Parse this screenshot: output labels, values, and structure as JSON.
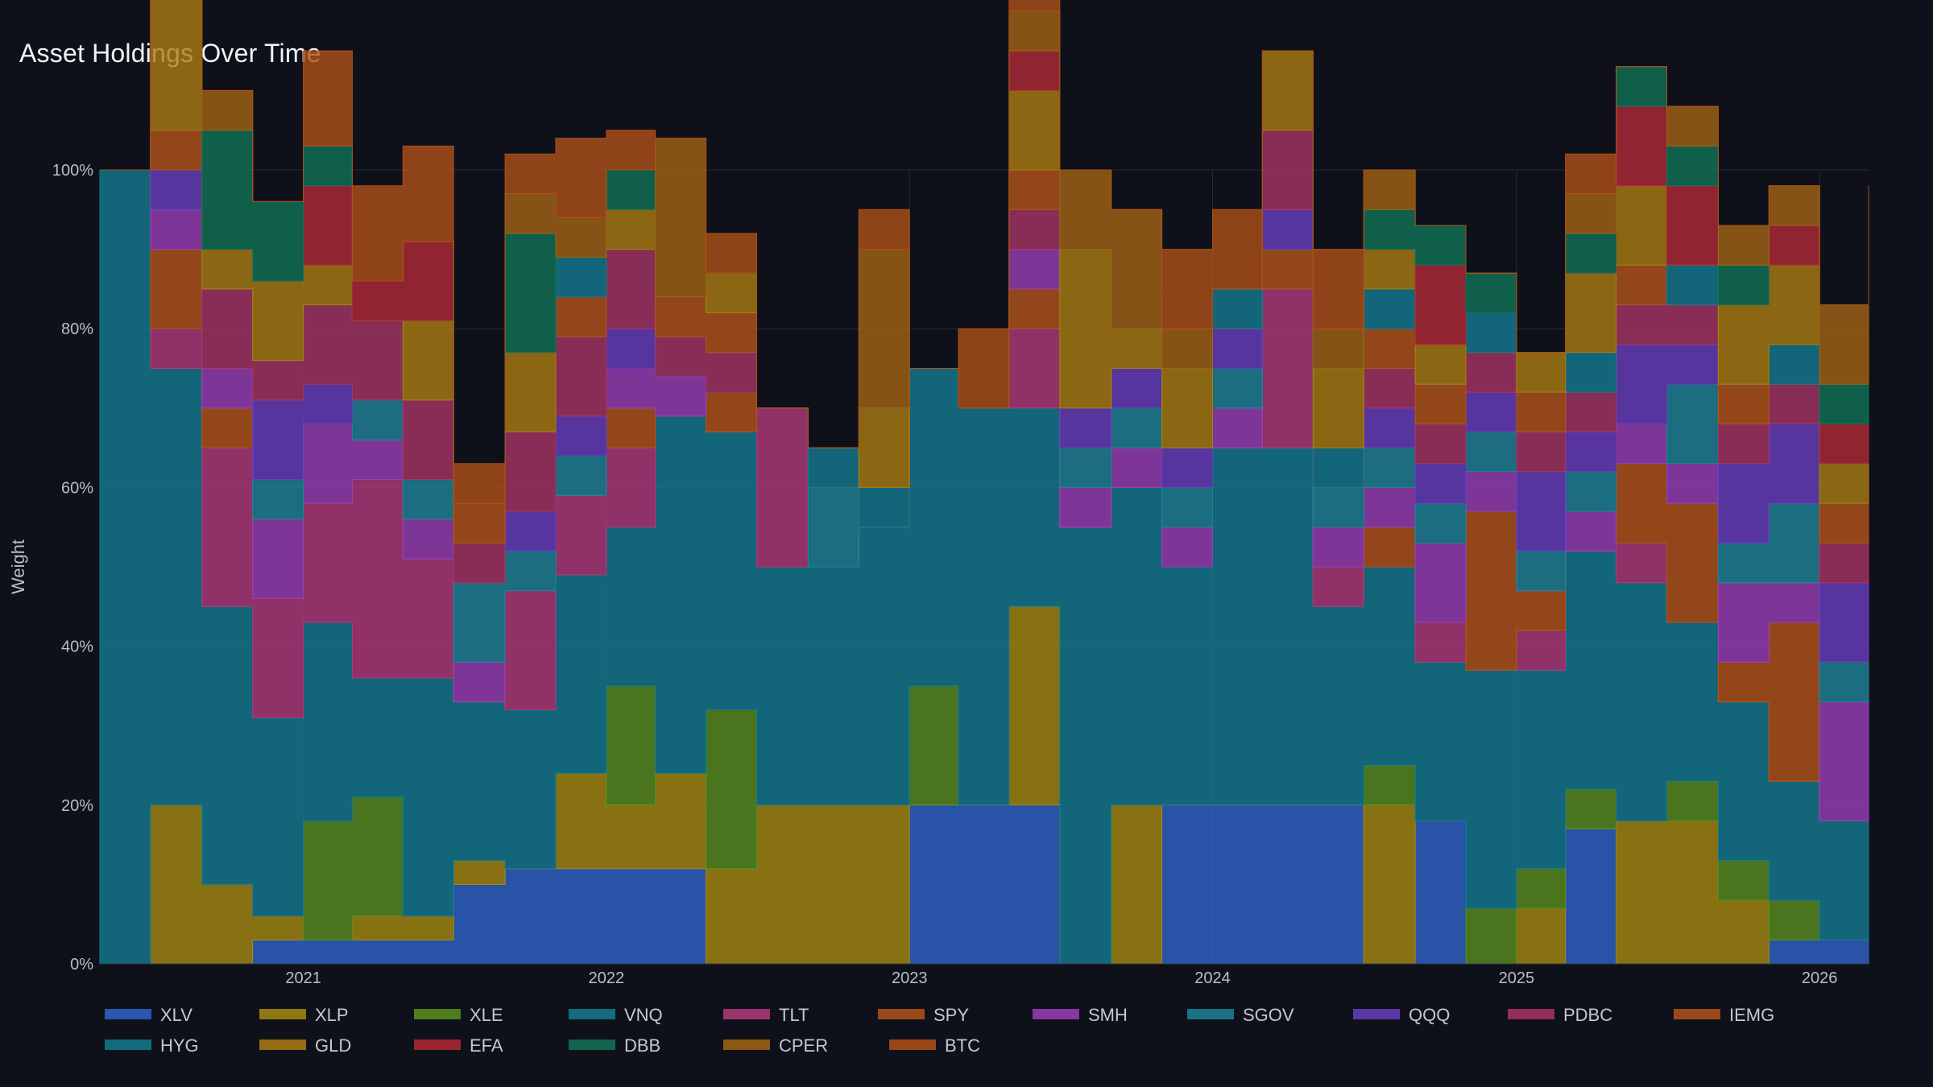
{
  "page": {
    "title": "Asset Holdings Over Time"
  },
  "chart_data": {
    "type": "area",
    "title": "Asset Holdings Over Time",
    "xlabel": "",
    "ylabel": "Weight",
    "y_tick_labels": [
      "0%",
      "20%",
      "40%",
      "60%",
      "80%",
      "100%"
    ],
    "x_tick_labels": [
      "2021",
      "2022",
      "2023",
      "2024",
      "2025",
      "2026"
    ],
    "xlim": [
      "2020-05-01",
      "2026-03-01"
    ],
    "ylim": [
      0,
      100
    ],
    "grid": true,
    "legend_position": "bottom",
    "x": [
      "2020-05-01",
      "2020-07-01",
      "2020-09-01",
      "2020-11-01",
      "2021-01-01",
      "2021-03-01",
      "2021-05-01",
      "2021-07-01",
      "2021-09-01",
      "2021-11-01",
      "2022-01-01",
      "2022-03-01",
      "2022-05-01",
      "2022-07-01",
      "2022-09-01",
      "2022-11-01",
      "2023-01-01",
      "2023-03-01",
      "2023-05-01",
      "2023-07-01",
      "2023-09-01",
      "2023-11-01",
      "2024-01-01",
      "2024-03-01",
      "2024-05-01",
      "2024-07-01",
      "2024-09-01",
      "2024-11-01",
      "2025-01-01",
      "2025-03-01",
      "2025-05-01",
      "2025-07-01",
      "2025-09-01",
      "2025-11-01",
      "2026-01-01",
      "2026-03-01"
    ],
    "series": [
      {
        "name": "XLV",
        "color": "#2f64c9",
        "values": [
          0,
          0,
          0,
          3,
          3,
          3,
          3,
          10,
          12,
          12,
          12,
          12,
          0,
          0,
          0,
          0,
          20,
          20,
          20,
          0,
          0,
          20,
          20,
          20,
          20,
          0,
          18,
          0,
          0,
          17,
          0,
          0,
          0,
          3,
          3,
          3
        ]
      },
      {
        "name": "XLP",
        "color": "#a68a12",
        "values": [
          0,
          20,
          10,
          3,
          0,
          3,
          3,
          3,
          0,
          12,
          8,
          12,
          12,
          20,
          20,
          20,
          0,
          0,
          25,
          0,
          20,
          0,
          0,
          0,
          0,
          20,
          0,
          0,
          7,
          0,
          18,
          18,
          8,
          0,
          0,
          3
        ]
      },
      {
        "name": "XLE",
        "color": "#5a8f1f",
        "values": [
          0,
          0,
          0,
          0,
          15,
          15,
          0,
          0,
          0,
          0,
          15,
          0,
          20,
          0,
          0,
          0,
          15,
          0,
          0,
          0,
          0,
          0,
          0,
          0,
          0,
          5,
          0,
          7,
          5,
          5,
          0,
          5,
          5,
          5,
          0,
          5
        ]
      },
      {
        "name": "VNQ",
        "color": "#157a91",
        "values": [
          100,
          55,
          35,
          25,
          25,
          15,
          30,
          20,
          20,
          25,
          20,
          45,
          35,
          30,
          30,
          35,
          40,
          50,
          25,
          55,
          40,
          30,
          45,
          45,
          25,
          25,
          20,
          30,
          25,
          30,
          30,
          20,
          20,
          15,
          15,
          10
        ]
      },
      {
        "name": "TLT",
        "color": "#b23a7a",
        "values": [
          0,
          5,
          20,
          15,
          15,
          25,
          15,
          0,
          15,
          10,
          10,
          0,
          0,
          20,
          0,
          0,
          0,
          0,
          10,
          0,
          0,
          0,
          0,
          20,
          5,
          0,
          5,
          0,
          5,
          0,
          5,
          0,
          0,
          0,
          0,
          5
        ]
      },
      {
        "name": "SPY",
        "color": "#b5541a",
        "values": [
          0,
          10,
          5,
          0,
          0,
          0,
          0,
          0,
          0,
          0,
          5,
          0,
          5,
          0,
          0,
          0,
          0,
          0,
          5,
          0,
          0,
          0,
          0,
          5,
          0,
          5,
          0,
          20,
          5,
          0,
          10,
          15,
          5,
          20,
          0,
          15
        ]
      },
      {
        "name": "SMH",
        "color": "#9b3fb8",
        "values": [
          0,
          5,
          5,
          10,
          10,
          5,
          5,
          5,
          0,
          0,
          5,
          5,
          0,
          0,
          0,
          0,
          0,
          0,
          5,
          5,
          5,
          5,
          5,
          0,
          5,
          5,
          10,
          5,
          0,
          5,
          5,
          5,
          10,
          5,
          15,
          10
        ]
      },
      {
        "name": "SGOV",
        "color": "#1f8499",
        "values": [
          0,
          0,
          0,
          5,
          0,
          5,
          5,
          10,
          5,
          5,
          0,
          0,
          0,
          0,
          10,
          0,
          0,
          0,
          0,
          5,
          5,
          5,
          5,
          0,
          5,
          5,
          5,
          5,
          5,
          5,
          0,
          10,
          5,
          10,
          5,
          5
        ]
      },
      {
        "name": "QQQ",
        "color": "#6a3fc0",
        "values": [
          0,
          5,
          0,
          10,
          5,
          0,
          0,
          0,
          5,
          5,
          5,
          0,
          0,
          0,
          0,
          0,
          0,
          0,
          0,
          5,
          5,
          5,
          5,
          5,
          0,
          5,
          5,
          5,
          10,
          5,
          10,
          5,
          10,
          10,
          10,
          0
        ]
      },
      {
        "name": "PDBC",
        "color": "#a83465",
        "values": [
          0,
          0,
          10,
          5,
          10,
          10,
          10,
          5,
          10,
          10,
          10,
          5,
          5,
          0,
          0,
          0,
          0,
          0,
          5,
          0,
          0,
          0,
          0,
          10,
          0,
          5,
          5,
          5,
          5,
          5,
          5,
          5,
          5,
          5,
          5,
          5
        ]
      },
      {
        "name": "IEMG",
        "color": "#b5541a",
        "values": [
          0,
          5,
          0,
          0,
          0,
          0,
          0,
          5,
          0,
          5,
          0,
          5,
          5,
          0,
          0,
          0,
          0,
          0,
          5,
          0,
          0,
          0,
          0,
          0,
          0,
          5,
          5,
          0,
          5,
          0,
          5,
          0,
          5,
          0,
          5,
          5
        ]
      },
      {
        "name": "HYG",
        "color": "#157a91",
        "values": [
          0,
          0,
          0,
          0,
          0,
          0,
          0,
          0,
          0,
          5,
          0,
          0,
          0,
          0,
          5,
          5,
          0,
          0,
          0,
          0,
          0,
          0,
          5,
          0,
          5,
          5,
          0,
          5,
          0,
          5,
          0,
          5,
          0,
          5,
          0,
          5
        ]
      },
      {
        "name": "GLD",
        "color": "#ad7d12",
        "values": [
          0,
          20,
          5,
          10,
          5,
          0,
          10,
          0,
          10,
          0,
          5,
          0,
          5,
          0,
          0,
          10,
          0,
          0,
          10,
          20,
          5,
          10,
          0,
          10,
          10,
          5,
          5,
          0,
          5,
          10,
          10,
          0,
          10,
          10,
          5,
          2
        ]
      },
      {
        "name": "EFA",
        "color": "#b22a37",
        "values": [
          0,
          0,
          0,
          0,
          10,
          5,
          10,
          0,
          0,
          0,
          0,
          0,
          0,
          0,
          0,
          0,
          0,
          0,
          5,
          0,
          0,
          0,
          0,
          0,
          0,
          0,
          10,
          0,
          0,
          0,
          10,
          10,
          0,
          5,
          5,
          20
        ]
      },
      {
        "name": "DBB",
        "color": "#127357",
        "values": [
          0,
          0,
          15,
          10,
          5,
          0,
          0,
          0,
          15,
          0,
          5,
          0,
          0,
          0,
          0,
          0,
          0,
          0,
          0,
          0,
          0,
          0,
          0,
          0,
          0,
          5,
          5,
          5,
          0,
          5,
          5,
          5,
          5,
          0,
          5,
          0
        ]
      },
      {
        "name": "CPER",
        "color": "#a36414",
        "values": [
          0,
          10,
          5,
          0,
          0,
          0,
          0,
          0,
          5,
          5,
          0,
          20,
          0,
          0,
          0,
          20,
          0,
          0,
          5,
          10,
          15,
          5,
          0,
          0,
          5,
          5,
          0,
          0,
          0,
          5,
          0,
          5,
          5,
          5,
          10,
          5
        ]
      },
      {
        "name": "BTC",
        "color": "#b05019",
        "values": [
          0,
          0,
          0,
          0,
          12,
          12,
          12,
          5,
          5,
          10,
          5,
          0,
          5,
          0,
          0,
          5,
          0,
          10,
          10,
          0,
          0,
          10,
          10,
          0,
          10,
          0,
          0,
          0,
          0,
          5,
          0,
          0,
          0,
          0,
          0,
          0
        ]
      }
    ]
  }
}
